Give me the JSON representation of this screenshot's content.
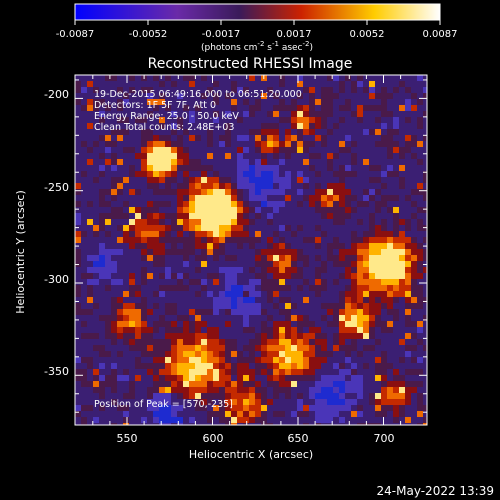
{
  "colorbar": {
    "ticks": [
      "-0.0087",
      "-0.0052",
      "-0.0017",
      "0.0017",
      "0.0052",
      "0.0087"
    ],
    "unit_main": "(photons cm",
    "unit_exp1": "-2",
    "unit_mid": " s",
    "unit_exp2": "-1",
    "unit_mid2": " asec",
    "unit_exp3": "-2",
    "unit_end": ")",
    "colors": [
      "#0000ff",
      "#6a2aa8",
      "#3a1a5a",
      "#cc2200",
      "#ffcc00",
      "#ffffff"
    ]
  },
  "plot": {
    "title": "Reconstructed RHESSI Image",
    "xlabel": "Heliocentric X (arcsec)",
    "ylabel": "Heliocentric Y (arcsec)",
    "xticks": [
      "550",
      "600",
      "650",
      "700"
    ],
    "yticks": [
      "-200",
      "-250",
      "-300",
      "-350"
    ],
    "info_lines": [
      "19-Dec-2015 06:49:16.000 to 06:51:20.000",
      "Detectors: 1F 5F 7F, Att 0",
      "Energy Range: 25.0 - 50.0 keV",
      "Clean    Total counts: 2.48E+03"
    ],
    "peak_label": "Position of Peak = [570,-235]"
  },
  "footer": {
    "date": "24-May-2022 13:39"
  }
}
